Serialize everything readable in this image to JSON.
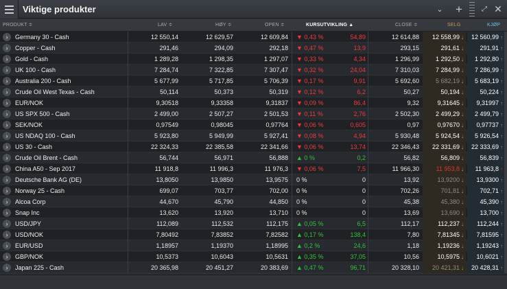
{
  "window": {
    "title": "Viktige produkter"
  },
  "columns": {
    "product": "PRODUKT ≑",
    "low": "LAV ≑",
    "high": "HØY ≑",
    "open": "OPEN ≑",
    "change": "KURSUTVIKLING ▲",
    "close": "CLOSE ≑",
    "sell": "SELG",
    "buy": "KJØP"
  },
  "rows": [
    {
      "name": "Germany 30 - Cash",
      "low": "12 550,14",
      "high": "12 629,57",
      "open": "12 609,84",
      "pct": "0,43 %",
      "chg": "54,89",
      "dir": "neg",
      "close": "12 614,88",
      "sell": "12 558,99",
      "sell_style": "sell-norm",
      "sell_ind": "down",
      "buy": "12 560,99",
      "buy_ind": "up"
    },
    {
      "name": "Copper - Cash",
      "low": "291,46",
      "high": "294,09",
      "open": "292,18",
      "pct": "0,47 %",
      "chg": "13,9",
      "dir": "neg",
      "close": "293,15",
      "sell": "291,61",
      "sell_style": "sell-norm",
      "sell_ind": "down",
      "buy": "291,91",
      "buy_ind": "up"
    },
    {
      "name": "Gold - Cash",
      "low": "1 289,28",
      "high": "1 298,35",
      "open": "1 297,07",
      "pct": "0,33 %",
      "chg": "4,34",
      "dir": "neg",
      "close": "1 296,99",
      "sell": "1 292,50",
      "sell_style": "sell-norm",
      "sell_ind": "down",
      "buy": "1 292,80",
      "buy_ind": "up"
    },
    {
      "name": "UK 100 - Cash",
      "low": "7 284,74",
      "high": "7 322,85",
      "open": "7 307,47",
      "pct": "0,32 %",
      "chg": "24,04",
      "dir": "neg",
      "close": "7 310,03",
      "sell": "7 284,99",
      "sell_style": "sell-norm",
      "sell_ind": "down",
      "buy": "7 286,99",
      "buy_ind": "up"
    },
    {
      "name": "Australia 200 - Cash",
      "low": "5 677,99",
      "high": "5 717,85",
      "open": "5 706,39",
      "pct": "0,17 %",
      "chg": "9,91",
      "dir": "neg",
      "close": "5 692,60",
      "sell": "5 682,19",
      "sell_style": "sell-flat",
      "sell_ind": "down",
      "buy": "5 683,19",
      "buy_ind": "up"
    },
    {
      "name": "Crude Oil West Texas - Cash",
      "low": "50,114",
      "high": "50,373",
      "open": "50,319",
      "pct": "0,12 %",
      "chg": "6,2",
      "dir": "neg",
      "close": "50,27",
      "sell": "50,194",
      "sell_style": "sell-norm",
      "sell_ind": "down",
      "buy": "50,224",
      "buy_ind": "up"
    },
    {
      "name": "EUR/NOK",
      "low": "9,30518",
      "high": "9,33358",
      "open": "9,31837",
      "pct": "0,09 %",
      "chg": "86,4",
      "dir": "neg",
      "close": "9,32",
      "sell": "9,31645",
      "sell_style": "sell-norm",
      "sell_ind": "down",
      "buy": "9,31997",
      "buy_ind": "up"
    },
    {
      "name": "US SPX 500 - Cash",
      "low": "2 499,00",
      "high": "2 507,27",
      "open": "2 501,53",
      "pct": "0,11 %",
      "chg": "2,76",
      "dir": "neg",
      "close": "2 502,30",
      "sell": "2 499,29",
      "sell_style": "sell-norm",
      "sell_ind": "down",
      "buy": "2 499,79",
      "buy_ind": "up"
    },
    {
      "name": "SEK/NOK",
      "low": "0,97549",
      "high": "0,98045",
      "open": "0,97764",
      "pct": "0,06 %",
      "chg": "0,605",
      "dir": "neg",
      "close": "0,97",
      "sell": "0,97670",
      "sell_style": "sell-norm",
      "sell_ind": "down",
      "buy": "0,97737",
      "buy_ind": "up"
    },
    {
      "name": "US NDAQ 100 - Cash",
      "low": "5 923,80",
      "high": "5 949,99",
      "open": "5 927,41",
      "pct": "0,08 %",
      "chg": "4,94",
      "dir": "neg",
      "close": "5 930,48",
      "sell": "5 924,54",
      "sell_style": "sell-norm",
      "sell_ind": "down",
      "buy": "5 926,54",
      "buy_ind": "up"
    },
    {
      "name": "US 30 - Cash",
      "low": "22 324,33",
      "high": "22 385,58",
      "open": "22 341,66",
      "pct": "0,06 %",
      "chg": "13,74",
      "dir": "neg",
      "close": "22 346,43",
      "sell": "22 331,69",
      "sell_style": "sell-norm",
      "sell_ind": "down",
      "buy": "22 333,69",
      "buy_ind": "up"
    },
    {
      "name": "Crude Oil Brent - Cash",
      "low": "56,744",
      "high": "56,971",
      "open": "56,888",
      "pct": "0 %",
      "chg": "0,2",
      "dir": "pos",
      "close": "56,82",
      "sell": "56,809",
      "sell_style": "sell-norm",
      "sell_ind": "down",
      "buy": "56,839",
      "buy_ind": "up"
    },
    {
      "name": "China A50 - Sep 2017",
      "low": "11 918,8",
      "high": "11 996,3",
      "open": "11 976,3",
      "pct": "0,06 %",
      "chg": "7,5",
      "dir": "neg",
      "close": "11 966,30",
      "sell": "11 953,8",
      "sell_style": "sell-red",
      "sell_ind": "down",
      "buy": "11 963,8",
      "buy_ind": "redup"
    },
    {
      "name": "Deutsche Bank AG (DE)",
      "low": "13,8050",
      "high": "13,9850",
      "open": "13,9575",
      "pct": "0 %",
      "chg": "0",
      "dir": "zero",
      "close": "13,92",
      "sell": "13,9200",
      "sell_style": "sell-flat",
      "sell_ind": "down",
      "buy": "13,9300",
      "buy_ind": "up"
    },
    {
      "name": "Norway 25 - Cash",
      "low": "699,07",
      "high": "703,77",
      "open": "702,00",
      "pct": "0 %",
      "chg": "0",
      "dir": "zero",
      "close": "702,26",
      "sell": "701,81",
      "sell_style": "sell-flat",
      "sell_ind": "down",
      "buy": "702,71",
      "buy_ind": "up"
    },
    {
      "name": "Alcoa Corp",
      "low": "44,670",
      "high": "45,790",
      "open": "44,850",
      "pct": "0 %",
      "chg": "0",
      "dir": "zero",
      "close": "45,38",
      "sell": "45,380",
      "sell_style": "sell-flat",
      "sell_ind": "down",
      "buy": "45,390",
      "buy_ind": "up"
    },
    {
      "name": "Snap Inc",
      "low": "13,620",
      "high": "13,920",
      "open": "13,710",
      "pct": "0 %",
      "chg": "0",
      "dir": "zero",
      "close": "13,69",
      "sell": "13,690",
      "sell_style": "sell-flat",
      "sell_ind": "down",
      "buy": "13,700",
      "buy_ind": "up"
    },
    {
      "name": "USD/JPY",
      "low": "112,089",
      "high": "112,532",
      "open": "112,175",
      "pct": "0,05 %",
      "chg": "6,5",
      "dir": "pos",
      "close": "112,17",
      "sell": "112,237",
      "sell_style": "sell-norm",
      "sell_ind": "down",
      "buy": "112,244",
      "buy_ind": "up"
    },
    {
      "name": "USD/NOK",
      "low": "7,80492",
      "high": "7,83852",
      "open": "7,82582",
      "pct": "0,17 %",
      "chg": "138,4",
      "dir": "pos",
      "close": "7,80",
      "sell": "7,81345",
      "sell_style": "sell-norm",
      "sell_ind": "down",
      "buy": "7,81595",
      "buy_ind": "up"
    },
    {
      "name": "EUR/USD",
      "low": "1,18957",
      "high": "1,19370",
      "open": "1,18995",
      "pct": "0,2 %",
      "chg": "24,6",
      "dir": "pos",
      "close": "1,18",
      "sell": "1,19236",
      "sell_style": "sell-norm",
      "sell_ind": "down",
      "buy": "1,19243",
      "buy_ind": "up"
    },
    {
      "name": "GBP/NOK",
      "low": "10,5373",
      "high": "10,6043",
      "open": "10,5631",
      "pct": "0,35 %",
      "chg": "37,05",
      "dir": "pos",
      "close": "10,56",
      "sell": "10,5975",
      "sell_style": "sell-norm",
      "sell_ind": "down",
      "buy": "10,6021",
      "buy_ind": "up"
    },
    {
      "name": "Japan 225 - Cash",
      "low": "20 365,98",
      "high": "20 451,27",
      "open": "20 383,69",
      "pct": "0,47 %",
      "chg": "96,71",
      "dir": "pos",
      "close": "20 328,10",
      "sell": "20 421,31",
      "sell_style": "sell-flat",
      "sell_ind": "down",
      "buy": "20 428,31",
      "buy_ind": "up"
    }
  ]
}
